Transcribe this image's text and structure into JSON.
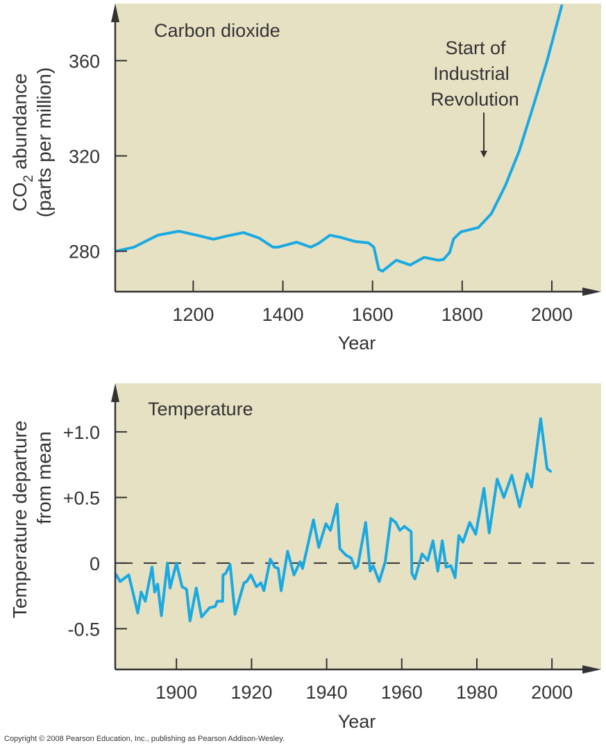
{
  "colors": {
    "panel_background": "#e7e1c4",
    "series_line": "#1aa9e1",
    "axis": "#333333",
    "text": "#333333"
  },
  "copyright": "Copyright © 2008 Pearson Education, Inc., publishing as Pearson Addison-Wesley.",
  "chart_data": [
    {
      "type": "line",
      "title": "Carbon dioxide",
      "xlabel": "Year",
      "ylabel_line1": "CO",
      "ylabel_sub": "2",
      "ylabel_line1_rest": " abundance",
      "ylabel_line2": "(parts per million)",
      "xlim": [
        1026,
        2110
      ],
      "ylim": [
        263,
        384
      ],
      "xticks": [
        1200,
        1400,
        1600,
        1800,
        2000
      ],
      "xtick_labels": [
        "1200",
        "1400",
        "1600",
        "1800",
        "2000"
      ],
      "yticks": [
        280,
        320,
        360
      ],
      "ytick_labels": [
        "280",
        "320",
        "360"
      ],
      "grid": false,
      "annotation": {
        "lines": [
          "Start of",
          "Industrial",
          "Revolution"
        ],
        "arrow_year": 1850,
        "arrow_value": 318
      },
      "series": [
        {
          "name": "CO2 abundance",
          "x": [
            1028,
            1068,
            1121,
            1168,
            1208,
            1245,
            1276,
            1312,
            1347,
            1378,
            1389,
            1431,
            1462,
            1479,
            1505,
            1529,
            1560,
            1591,
            1603,
            1614,
            1622,
            1653,
            1684,
            1715,
            1746,
            1758,
            1772,
            1781,
            1797,
            1836,
            1865,
            1896,
            1927,
            1958,
            1989,
            2022
          ],
          "y": [
            280,
            281.7,
            286.7,
            288.4,
            286.7,
            285,
            286.4,
            287.8,
            285.5,
            281.7,
            281.7,
            283.8,
            281.7,
            283.2,
            286.7,
            285.8,
            284.1,
            283.5,
            281.7,
            272.4,
            271.6,
            276.2,
            274.2,
            277.4,
            276.2,
            276.5,
            279.4,
            285.2,
            288.1,
            289.9,
            295.7,
            307.4,
            321.9,
            340.5,
            359.7,
            383
          ]
        }
      ]
    },
    {
      "type": "line",
      "title": "Temperature",
      "xlabel": "Year",
      "ylabel_line1": "Temperature departure",
      "ylabel_line2": "from mean",
      "xlim": [
        1883.7,
        2013.1
      ],
      "ylim": [
        -0.81,
        1.37
      ],
      "xticks": [
        1900,
        1920,
        1940,
        1960,
        1980,
        2000
      ],
      "xtick_labels": [
        "1900",
        "1920",
        "1940",
        "1960",
        "1980",
        "2000"
      ],
      "yticks": [
        -0.5,
        0,
        0.5,
        1.0
      ],
      "ytick_labels": [
        "-0.5",
        "0",
        "+0.5",
        "+1.0"
      ],
      "reference_line": {
        "value": 0,
        "style": "dashed"
      },
      "grid": false,
      "series": [
        {
          "name": "Temperature departure from mean",
          "x": [
            1884,
            1885,
            1887.3,
            1889.7,
            1890.6,
            1891.7,
            1893.5,
            1894.2,
            1895,
            1896,
            1897.6,
            1898.3,
            1900,
            1901.5,
            1902.7,
            1903.6,
            1905.3,
            1906.7,
            1908.8,
            1910.3,
            1910.9,
            1912.3,
            1912.4,
            1913.1,
            1914.3,
            1915.6,
            1918,
            1918.7,
            1919.8,
            1921.3,
            1922.5,
            1923.3,
            1925,
            1926.2,
            1927.1,
            1927.9,
            1929.6,
            1931.3,
            1932.9,
            1933.6,
            1936.5,
            1937.9,
            1939.8,
            1941,
            1942.8,
            1943.5,
            1945.2,
            1946.5,
            1947.6,
            1948.3,
            1950.4,
            1951.6,
            1952.4,
            1954,
            1955.6,
            1957.1,
            1958.4,
            1959.5,
            1960.7,
            1961.6,
            1962.5,
            1962.7,
            1963.5,
            1965.4,
            1966.9,
            1968.3,
            1969.6,
            1970.8,
            1971.8,
            1973.1,
            1974.2,
            1975.2,
            1976.3,
            1978.1,
            1979.7,
            1981.9,
            1983.3,
            1985.4,
            1987.2,
            1989.3,
            1991.4,
            1993.4,
            1994.6,
            1997,
            1998.7,
            1999.6
          ],
          "y": [
            -0.09,
            -0.14,
            -0.09,
            -0.38,
            -0.22,
            -0.29,
            -0.03,
            -0.22,
            -0.16,
            -0.4,
            0.0,
            -0.19,
            0.0,
            -0.18,
            -0.2,
            -0.44,
            -0.19,
            -0.41,
            -0.34,
            -0.33,
            -0.29,
            -0.29,
            -0.09,
            -0.08,
            -0.01,
            -0.39,
            -0.15,
            -0.14,
            -0.09,
            -0.18,
            -0.15,
            -0.21,
            0.03,
            -0.03,
            -0.04,
            -0.21,
            0.09,
            -0.09,
            0.01,
            -0.04,
            0.33,
            0.12,
            0.3,
            0.25,
            0.45,
            0.11,
            0.06,
            0.04,
            -0.04,
            -0.02,
            0.31,
            -0.06,
            -0.02,
            -0.14,
            0.01,
            0.34,
            0.31,
            0.25,
            0.28,
            0.26,
            0.24,
            -0.08,
            -0.12,
            0.07,
            0.02,
            0.17,
            -0.06,
            0.17,
            -0.03,
            -0.02,
            -0.11,
            0.21,
            0.16,
            0.31,
            0.22,
            0.57,
            0.23,
            0.64,
            0.5,
            0.67,
            0.43,
            0.68,
            0.58,
            1.1,
            0.72,
            0.7
          ]
        }
      ]
    }
  ]
}
